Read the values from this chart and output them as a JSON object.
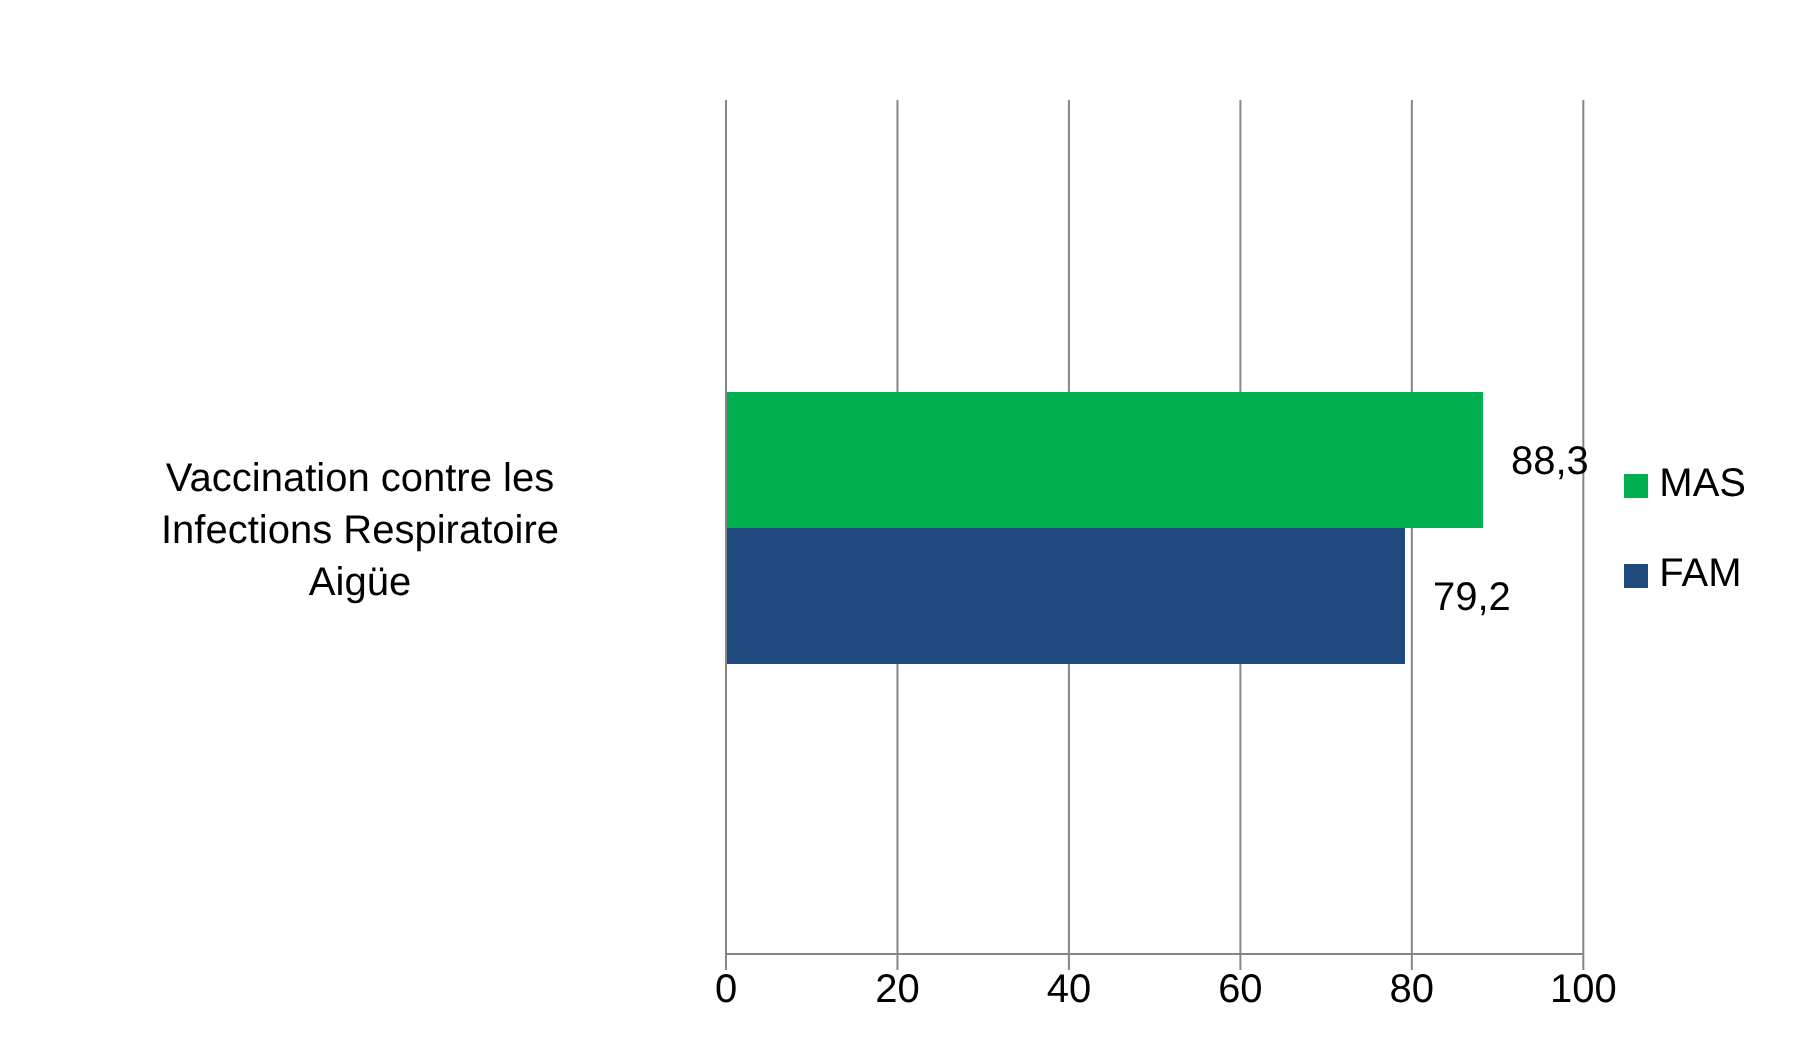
{
  "chart_data": {
    "type": "bar",
    "orientation": "horizontal",
    "categories": [
      "Vaccination contre les Infections Respiratoire Aigüe"
    ],
    "series": [
      {
        "name": "MAS",
        "color": "#00b050",
        "values": [
          88.3
        ],
        "value_labels": [
          "88,3"
        ]
      },
      {
        "name": "FAM",
        "color": "#1f497d",
        "values": [
          79.2
        ],
        "value_labels": [
          "79,2"
        ]
      }
    ],
    "xlim": [
      0,
      100
    ],
    "xticks": [
      0,
      20,
      40,
      60,
      80,
      100
    ],
    "grid": "x",
    "legend": "right"
  }
}
